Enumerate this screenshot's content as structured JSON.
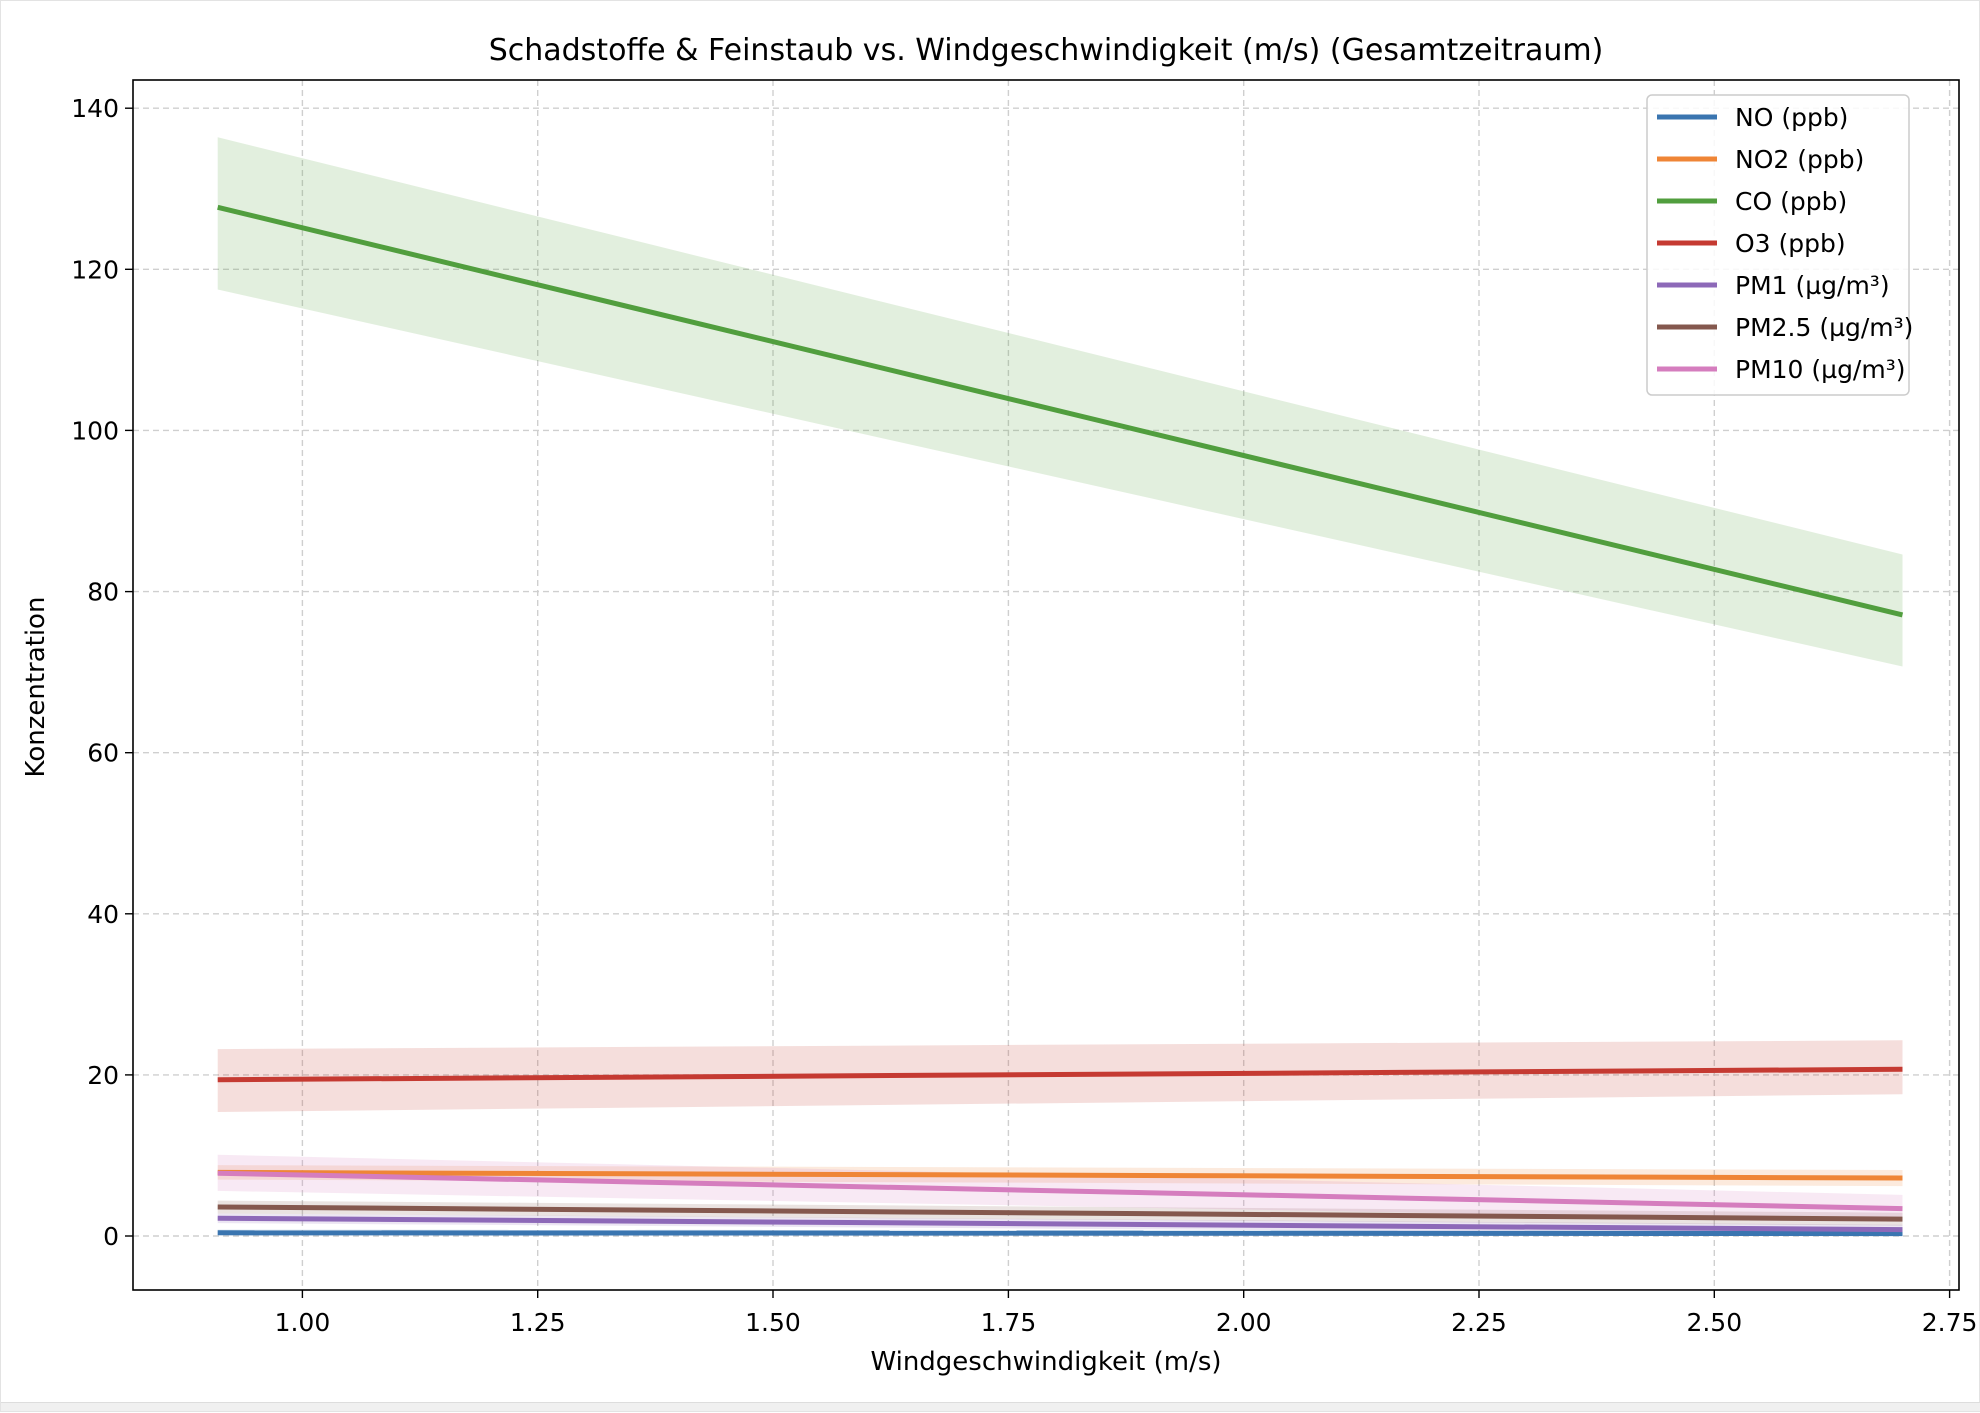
{
  "chart_data": {
    "type": "line",
    "title": "Schadstoffe & Feinstaub vs. Windgeschwindigkeit (m/s) (Gesamtzeitraum)",
    "xlabel": "Windgeschwindigkeit (m/s)",
    "ylabel": "Konzentration",
    "xlim": [
      0.82,
      2.76
    ],
    "ylim": [
      -6.7,
      143.5
    ],
    "xticks": [
      1.0,
      1.25,
      1.5,
      1.75,
      2.0,
      2.25,
      2.5,
      2.75
    ],
    "xtick_labels": [
      "1.00",
      "1.25",
      "1.50",
      "1.75",
      "2.00",
      "2.25",
      "2.50",
      "2.75"
    ],
    "yticks": [
      0,
      20,
      40,
      60,
      80,
      100,
      120,
      140
    ],
    "ytick_labels": [
      "0",
      "20",
      "40",
      "60",
      "80",
      "100",
      "120",
      "140"
    ],
    "grid": true,
    "legend_position": "top-right",
    "x": [
      0.91,
      2.7
    ],
    "series": [
      {
        "name": "NO (ppb)",
        "color": "#3a75b0",
        "values": [
          0.4,
          0.3
        ],
        "band_lower": [
          0.1,
          0.0
        ],
        "band_upper": [
          0.8,
          0.7
        ]
      },
      {
        "name": "NO2 (ppb)",
        "color": "#ef8536",
        "values": [
          7.9,
          7.2
        ],
        "band_lower": [
          7.0,
          6.2
        ],
        "band_upper": [
          8.8,
          8.2
        ]
      },
      {
        "name": "CO (ppb)",
        "color": "#519e3e",
        "values": [
          127.7,
          77.1
        ],
        "band_lower": [
          117.5,
          70.7
        ],
        "band_upper": [
          136.4,
          84.6
        ]
      },
      {
        "name": "O3 (ppb)",
        "color": "#c53a32",
        "values": [
          19.4,
          20.7
        ],
        "band_lower": [
          15.4,
          17.6
        ],
        "band_upper": [
          23.2,
          24.3
        ]
      },
      {
        "name": "PM1 (µg/m³)",
        "color": "#8d69b8",
        "values": [
          2.2,
          0.8
        ],
        "band_lower": [
          1.6,
          0.2
        ],
        "band_upper": [
          2.8,
          1.4
        ]
      },
      {
        "name": "PM2.5 (µg/m³)",
        "color": "#84584e",
        "values": [
          3.6,
          2.1
        ],
        "band_lower": [
          2.8,
          1.3
        ],
        "band_upper": [
          4.4,
          2.9
        ]
      },
      {
        "name": "PM10 (µg/m³)",
        "color": "#d57dbe",
        "values": [
          7.8,
          3.4
        ],
        "band_lower": [
          5.6,
          1.8
        ],
        "band_upper": [
          10.1,
          5.1
        ]
      }
    ]
  }
}
